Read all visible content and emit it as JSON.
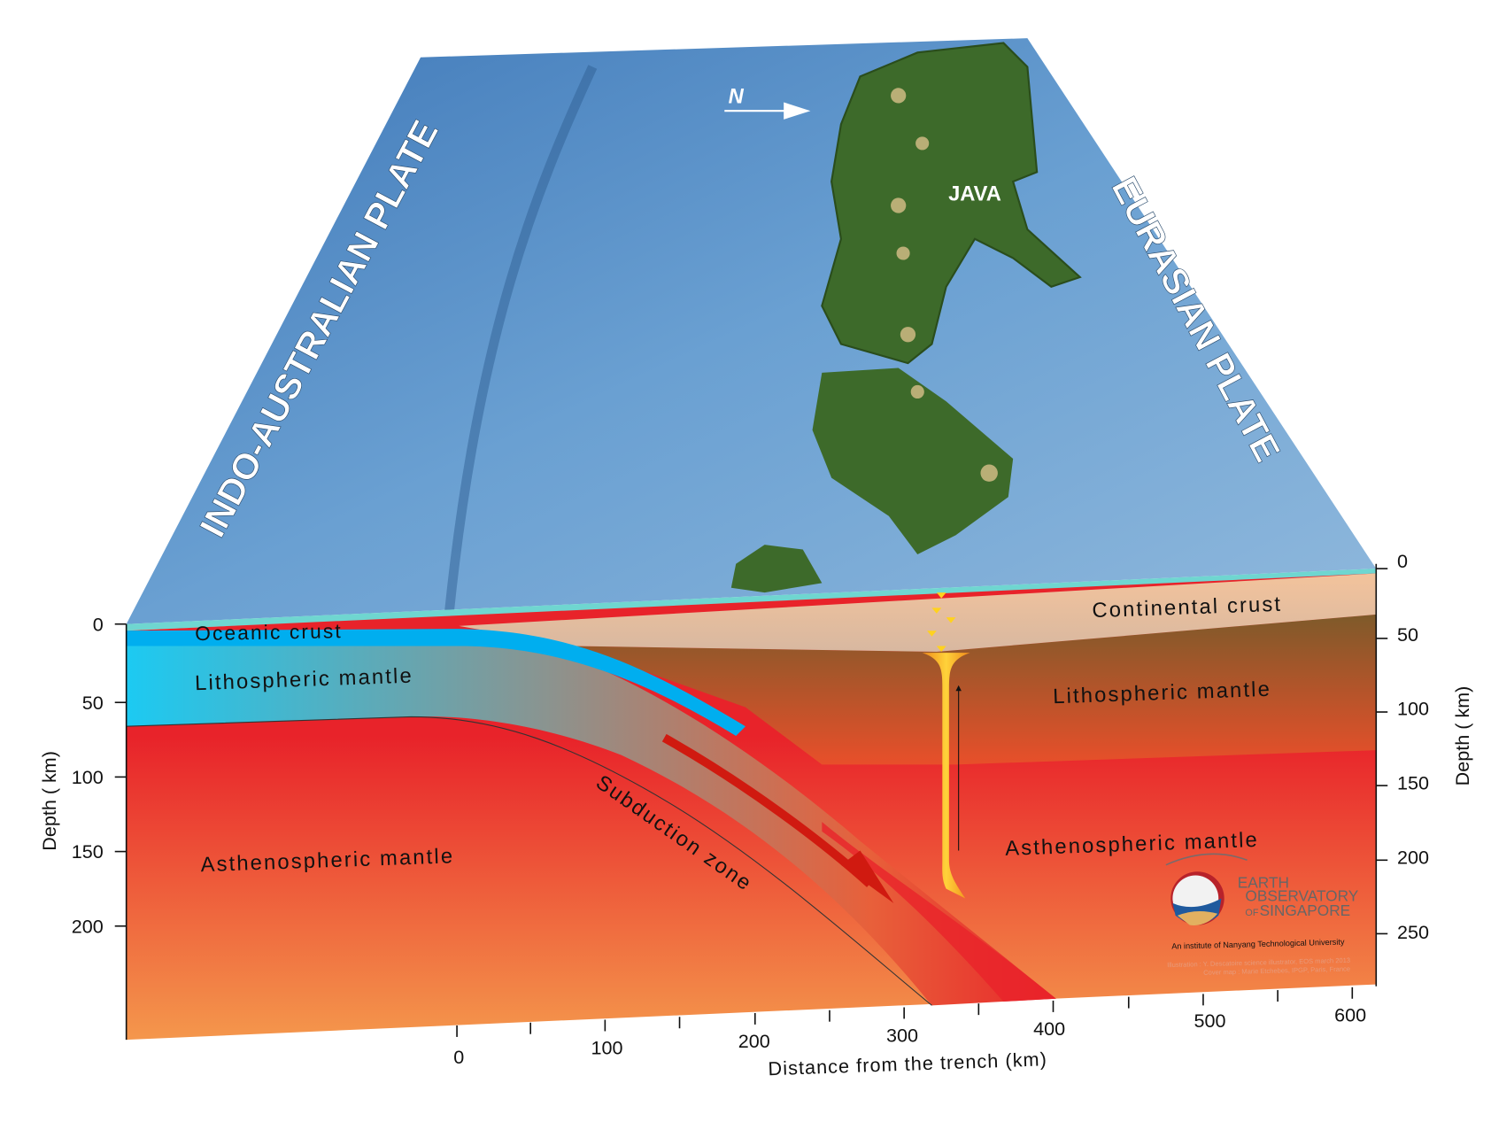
{
  "surface": {
    "plate_left": "INDO-AUSTRALIAN PLATE",
    "plate_right": "EURASIAN PLATE",
    "island": "JAVA",
    "north_label": "N"
  },
  "section": {
    "oceanic_crust": "Oceanic crust",
    "lith_mantle_left": "Lithospheric mantle",
    "asthen_left": "Asthenospheric mantle",
    "subduction": "Subduction zone",
    "continental_crust": "Continental crust",
    "lith_mantle_right": "Lithospheric mantle",
    "asthen_right": "Asthenospheric mantle"
  },
  "axes": {
    "depth_label_left": "Depth ( km)",
    "depth_label_right": "Depth ( km)",
    "left_ticks": [
      "0",
      "50",
      "100",
      "150",
      "200"
    ],
    "right_ticks": [
      "0",
      "50",
      "100",
      "150",
      "200",
      "250"
    ],
    "distance_label": "Distance from the trench (km)",
    "distance_ticks": [
      "0",
      "100",
      "200",
      "300",
      "400",
      "500",
      "600"
    ]
  },
  "logo": {
    "line1": "EARTH",
    "line2": "OBSERVATORY",
    "line3_prefix": "OF",
    "line3": "SINGAPORE",
    "institute": "An institute of Nanyang Technological University",
    "credit1": "Illustration : Y. Descatoire science illustrator, EOS march 2013",
    "credit2": "Cover map : Marie Etchebes, IPGP, Paris, France"
  },
  "colors": {
    "ocean": "#5b8fc4",
    "land": "#3f6b2a",
    "oceanic_crust": "#00aeef",
    "lith_mantle_oceanic": "#1cc8f0",
    "continental_crust": "#e8b896",
    "lith_mantle_continental": "#8a5a2b",
    "asthenosphere": "#e8262a",
    "asthenosphere_bottom": "#f4934a"
  }
}
